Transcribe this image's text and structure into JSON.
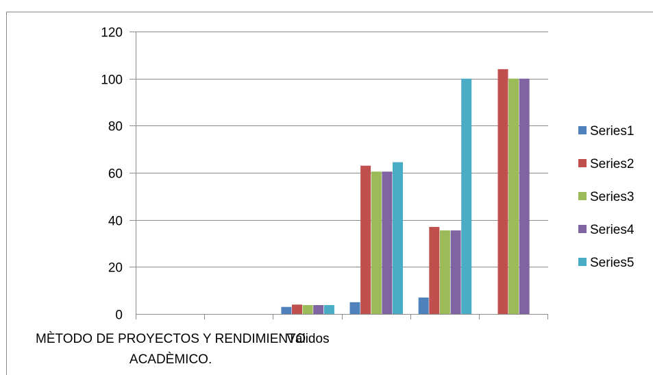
{
  "chart_data": {
    "type": "bar",
    "categories": [
      "MÈTODO DE PROYECTOS Y RENDIMIENTO ACADÈMICO.",
      "",
      "Válidos",
      "",
      "",
      ""
    ],
    "category_lines": [
      [
        "MÈTODO DE PROYECTOS Y RENDIMIENTO",
        "ACADÈMICO."
      ],
      [],
      [
        "Válidos"
      ],
      [],
      [],
      []
    ],
    "series": [
      {
        "name": "Series1",
        "color": "#4F81BD",
        "values": [
          null,
          null,
          3,
          5,
          7,
          null
        ]
      },
      {
        "name": "Series2",
        "color": "#C0504D",
        "values": [
          null,
          null,
          4,
          63,
          37,
          104
        ]
      },
      {
        "name": "Series3",
        "color": "#9BBB59",
        "values": [
          null,
          null,
          3.8,
          60.5,
          35.5,
          100
        ]
      },
      {
        "name": "Series4",
        "color": "#8064A2",
        "values": [
          null,
          null,
          3.8,
          60.5,
          35.5,
          100
        ]
      },
      {
        "name": "Series5",
        "color": "#4BACC6",
        "values": [
          null,
          null,
          3.8,
          64.5,
          100,
          null
        ]
      }
    ],
    "y_ticks": [
      0,
      20,
      40,
      60,
      80,
      100,
      120
    ],
    "ylim": [
      0,
      120
    ],
    "grid": true,
    "legend_position": "right"
  }
}
